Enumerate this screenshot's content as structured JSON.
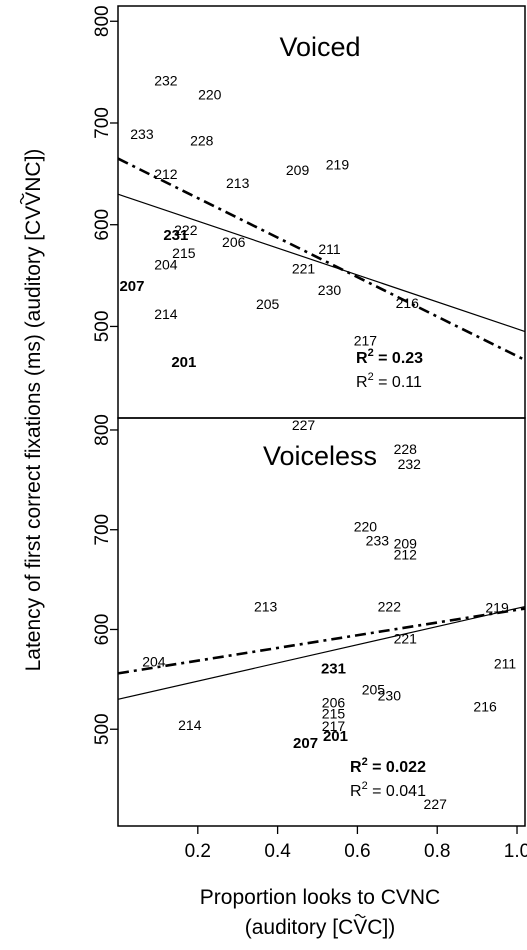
{
  "chart_data": {
    "type": "scatter",
    "ylabel": "Latency of first correct fixations (ms) (auditory [CṼNC])",
    "ylabel_main": "Latency of first correct fixations (ms) (auditory [CV",
    "ylabel_v": "V",
    "ylabel_end": "NC])",
    "xlabel_line1": "Proportion looks to CVNC",
    "xlabel_line2_pre": "(auditory [C",
    "xlabel_line2_v": "V",
    "xlabel_line2_post": "C])",
    "xlim": [
      0,
      1.02
    ],
    "xticks": [
      0.2,
      0.4,
      0.6,
      0.8,
      1.0
    ],
    "xtick_labels": [
      "0.2",
      "0.4",
      "0.6",
      "0.8",
      "1.0"
    ],
    "panels": [
      {
        "title": "Voiced",
        "ylim": [
          410,
          815
        ],
        "yticks": [
          500,
          600,
          700,
          800
        ],
        "ytick_labels": [
          "500",
          "600",
          "700",
          "800"
        ],
        "points": [
          {
            "label": "232",
            "x": 0.12,
            "y": 742,
            "bold": false
          },
          {
            "label": "220",
            "x": 0.23,
            "y": 728,
            "bold": false
          },
          {
            "label": "233",
            "x": 0.06,
            "y": 689,
            "bold": false
          },
          {
            "label": "228",
            "x": 0.21,
            "y": 683,
            "bold": false
          },
          {
            "label": "212",
            "x": 0.12,
            "y": 650,
            "bold": false
          },
          {
            "label": "213",
            "x": 0.3,
            "y": 641,
            "bold": false
          },
          {
            "label": "209",
            "x": 0.45,
            "y": 654,
            "bold": false
          },
          {
            "label": "219",
            "x": 0.55,
            "y": 659,
            "bold": false
          },
          {
            "label": "222",
            "x": 0.17,
            "y": 595,
            "bold": false
          },
          {
            "label": "231",
            "x": 0.145,
            "y": 590,
            "bold": true
          },
          {
            "label": "206",
            "x": 0.29,
            "y": 583,
            "bold": false
          },
          {
            "label": "215",
            "x": 0.165,
            "y": 572,
            "bold": false
          },
          {
            "label": "211",
            "x": 0.53,
            "y": 576,
            "bold": false
          },
          {
            "label": "204",
            "x": 0.12,
            "y": 561,
            "bold": false
          },
          {
            "label": "221",
            "x": 0.465,
            "y": 557,
            "bold": false
          },
          {
            "label": "207",
            "x": 0.035,
            "y": 540,
            "bold": true
          },
          {
            "label": "230",
            "x": 0.53,
            "y": 536,
            "bold": false
          },
          {
            "label": "205",
            "x": 0.375,
            "y": 522,
            "bold": false
          },
          {
            "label": "216",
            "x": 0.725,
            "y": 523,
            "bold": false
          },
          {
            "label": "214",
            "x": 0.12,
            "y": 512,
            "bold": false
          },
          {
            "label": "217",
            "x": 0.62,
            "y": 486,
            "bold": false
          },
          {
            "label": "201",
            "x": 0.165,
            "y": 465,
            "bold": true
          },
          {
            "label": "227",
            "x": 0.465,
            "y": 403,
            "bold": false
          }
        ],
        "fit_solid": {
          "x": [
            0.0,
            1.02
          ],
          "y": [
            630,
            495
          ]
        },
        "fit_dashdot": {
          "x": [
            0.0,
            1.02
          ],
          "y": [
            665,
            467
          ]
        },
        "r2_bold": {
          "prefix": "R",
          "exp": "2",
          "value": " = 0.23"
        },
        "r2_plain": {
          "prefix": "R",
          "exp": "2",
          "value": " = 0.11"
        }
      },
      {
        "title": "Voiceless",
        "ylim": [
          403,
          812
        ],
        "yticks": [
          500,
          600,
          700,
          800
        ],
        "ytick_labels": [
          "500",
          "600",
          "700",
          "800"
        ],
        "points": [
          {
            "label": "228",
            "x": 0.72,
            "y": 781,
            "bold": false
          },
          {
            "label": "232",
            "x": 0.73,
            "y": 766,
            "bold": false
          },
          {
            "label": "220",
            "x": 0.62,
            "y": 703,
            "bold": false
          },
          {
            "label": "233",
            "x": 0.65,
            "y": 689,
            "bold": false
          },
          {
            "label": "209",
            "x": 0.72,
            "y": 686,
            "bold": false
          },
          {
            "label": "212",
            "x": 0.72,
            "y": 675,
            "bold": false
          },
          {
            "label": "213",
            "x": 0.37,
            "y": 623,
            "bold": false
          },
          {
            "label": "222",
            "x": 0.68,
            "y": 623,
            "bold": false
          },
          {
            "label": "219",
            "x": 0.95,
            "y": 622,
            "bold": false
          },
          {
            "label": "221",
            "x": 0.72,
            "y": 591,
            "bold": false
          },
          {
            "label": "204",
            "x": 0.09,
            "y": 568,
            "bold": false
          },
          {
            "label": "211",
            "x": 0.97,
            "y": 566,
            "bold": false
          },
          {
            "label": "231",
            "x": 0.54,
            "y": 561,
            "bold": true
          },
          {
            "label": "205",
            "x": 0.64,
            "y": 540,
            "bold": false
          },
          {
            "label": "230",
            "x": 0.68,
            "y": 534,
            "bold": false
          },
          {
            "label": "206",
            "x": 0.54,
            "y": 527,
            "bold": false
          },
          {
            "label": "216",
            "x": 0.92,
            "y": 523,
            "bold": false
          },
          {
            "label": "215",
            "x": 0.54,
            "y": 516,
            "bold": false
          },
          {
            "label": "214",
            "x": 0.18,
            "y": 504,
            "bold": false
          },
          {
            "label": "217",
            "x": 0.54,
            "y": 503,
            "bold": false
          },
          {
            "label": "201",
            "x": 0.545,
            "y": 493,
            "bold": true
          },
          {
            "label": "207",
            "x": 0.47,
            "y": 486,
            "bold": true
          },
          {
            "label": "227",
            "x": 0.795,
            "y": 425,
            "bold": false
          }
        ],
        "fit_solid": {
          "x": [
            0.0,
            1.02
          ],
          "y": [
            530,
            623
          ]
        },
        "fit_dashdot": {
          "x": [
            0.0,
            1.02
          ],
          "y": [
            556,
            621
          ]
        },
        "r2_bold": {
          "prefix": "R",
          "exp": "2",
          "value": " = 0.022"
        },
        "r2_plain": {
          "prefix": "R",
          "exp": "2",
          "value": " = 0.041"
        }
      }
    ]
  }
}
